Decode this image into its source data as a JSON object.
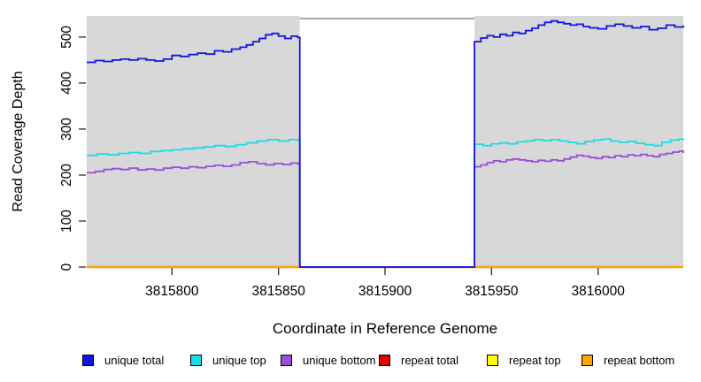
{
  "chart_data": {
    "type": "line",
    "title": "",
    "xlabel": "Coordinate in Reference Genome",
    "ylabel": "Read Coverage Depth",
    "xlim": [
      3815760,
      3816040
    ],
    "ylim": [
      0,
      546
    ],
    "xticks": [
      3815800,
      3815850,
      3815900,
      3815950,
      3816000
    ],
    "yticks": [
      0,
      100,
      200,
      300,
      400,
      500
    ],
    "grid": false,
    "legend_position": "bottom",
    "plot_background": "#d8d8d8",
    "page_background": "#ffffff",
    "tick_color": "#2b2b2b",
    "masked_region": {
      "x_start": 3815860,
      "x_end": 3815942,
      "fill": "#ffffff",
      "top_border_color": "#8d8d8d"
    },
    "draw_order": [
      "repeat total",
      "repeat top",
      "repeat bottom",
      "unique top",
      "unique bottom",
      "unique total"
    ],
    "series": [
      {
        "name": "unique total",
        "color": "#1414e0",
        "points": [
          [
            3815760,
            445
          ],
          [
            3815764,
            449
          ],
          [
            3815768,
            447
          ],
          [
            3815772,
            450
          ],
          [
            3815776,
            452
          ],
          [
            3815780,
            450
          ],
          [
            3815784,
            453
          ],
          [
            3815788,
            450
          ],
          [
            3815792,
            448
          ],
          [
            3815796,
            452
          ],
          [
            3815800,
            460
          ],
          [
            3815804,
            458
          ],
          [
            3815808,
            462
          ],
          [
            3815812,
            465
          ],
          [
            3815816,
            463
          ],
          [
            3815820,
            470
          ],
          [
            3815824,
            468
          ],
          [
            3815828,
            474
          ],
          [
            3815832,
            478
          ],
          [
            3815835,
            483
          ],
          [
            3815838,
            490
          ],
          [
            3815841,
            497
          ],
          [
            3815844,
            505
          ],
          [
            3815847,
            508
          ],
          [
            3815850,
            502
          ],
          [
            3815853,
            497
          ],
          [
            3815856,
            502
          ],
          [
            3815859,
            499
          ],
          [
            3815860,
            0
          ],
          [
            3815941,
            0
          ],
          [
            3815942,
            490
          ],
          [
            3815945,
            498
          ],
          [
            3815948,
            503
          ],
          [
            3815951,
            500
          ],
          [
            3815954,
            506
          ],
          [
            3815957,
            503
          ],
          [
            3815960,
            510
          ],
          [
            3815963,
            508
          ],
          [
            3815966,
            514
          ],
          [
            3815969,
            519
          ],
          [
            3815972,
            526
          ],
          [
            3815975,
            532
          ],
          [
            3815978,
            535
          ],
          [
            3815981,
            532
          ],
          [
            3815984,
            529
          ],
          [
            3815987,
            526
          ],
          [
            3815990,
            528
          ],
          [
            3815993,
            523
          ],
          [
            3815996,
            520
          ],
          [
            3816000,
            518
          ],
          [
            3816004,
            524
          ],
          [
            3816008,
            528
          ],
          [
            3816012,
            524
          ],
          [
            3816016,
            520
          ],
          [
            3816020,
            523
          ],
          [
            3816024,
            516
          ],
          [
            3816028,
            519
          ],
          [
            3816032,
            526
          ],
          [
            3816036,
            522
          ],
          [
            3816040,
            525
          ]
        ]
      },
      {
        "name": "unique top",
        "color": "#19dce6",
        "points": [
          [
            3815760,
            243
          ],
          [
            3815765,
            246
          ],
          [
            3815770,
            244
          ],
          [
            3815775,
            247
          ],
          [
            3815780,
            249
          ],
          [
            3815785,
            247
          ],
          [
            3815790,
            251
          ],
          [
            3815795,
            253
          ],
          [
            3815800,
            255
          ],
          [
            3815805,
            257
          ],
          [
            3815810,
            259
          ],
          [
            3815815,
            261
          ],
          [
            3815820,
            264
          ],
          [
            3815825,
            262
          ],
          [
            3815830,
            266
          ],
          [
            3815835,
            270
          ],
          [
            3815840,
            274
          ],
          [
            3815845,
            277
          ],
          [
            3815850,
            274
          ],
          [
            3815855,
            277
          ],
          [
            3815859,
            276
          ],
          [
            3815860,
            0
          ],
          [
            3815941,
            0
          ],
          [
            3815942,
            267
          ],
          [
            3815946,
            264
          ],
          [
            3815950,
            268
          ],
          [
            3815954,
            270
          ],
          [
            3815958,
            268
          ],
          [
            3815962,
            272
          ],
          [
            3815966,
            274
          ],
          [
            3815970,
            277
          ],
          [
            3815974,
            275
          ],
          [
            3815978,
            277
          ],
          [
            3815982,
            274
          ],
          [
            3815986,
            271
          ],
          [
            3815990,
            268
          ],
          [
            3815994,
            273
          ],
          [
            3815998,
            276
          ],
          [
            3816002,
            278
          ],
          [
            3816006,
            274
          ],
          [
            3816010,
            271
          ],
          [
            3816014,
            273
          ],
          [
            3816018,
            269
          ],
          [
            3816022,
            266
          ],
          [
            3816026,
            264
          ],
          [
            3816030,
            271
          ],
          [
            3816034,
            276
          ],
          [
            3816038,
            278
          ],
          [
            3816040,
            276
          ]
        ]
      },
      {
        "name": "unique bottom",
        "color": "#9b4ddb",
        "points": [
          [
            3815760,
            205
          ],
          [
            3815764,
            208
          ],
          [
            3815768,
            212
          ],
          [
            3815772,
            214
          ],
          [
            3815776,
            212
          ],
          [
            3815780,
            215
          ],
          [
            3815784,
            211
          ],
          [
            3815788,
            213
          ],
          [
            3815792,
            211
          ],
          [
            3815796,
            215
          ],
          [
            3815800,
            217
          ],
          [
            3815804,
            215
          ],
          [
            3815808,
            218
          ],
          [
            3815812,
            216
          ],
          [
            3815816,
            219
          ],
          [
            3815820,
            221
          ],
          [
            3815824,
            219
          ],
          [
            3815828,
            222
          ],
          [
            3815832,
            227
          ],
          [
            3815836,
            229
          ],
          [
            3815840,
            225
          ],
          [
            3815844,
            222
          ],
          [
            3815848,
            225
          ],
          [
            3815852,
            223
          ],
          [
            3815856,
            226
          ],
          [
            3815859,
            224
          ],
          [
            3815860,
            0
          ],
          [
            3815941,
            0
          ],
          [
            3815942,
            218
          ],
          [
            3815945,
            222
          ],
          [
            3815948,
            227
          ],
          [
            3815951,
            231
          ],
          [
            3815954,
            229
          ],
          [
            3815957,
            233
          ],
          [
            3815960,
            235
          ],
          [
            3815963,
            233
          ],
          [
            3815966,
            231
          ],
          [
            3815969,
            229
          ],
          [
            3815972,
            232
          ],
          [
            3815975,
            230
          ],
          [
            3815978,
            233
          ],
          [
            3815981,
            231
          ],
          [
            3815984,
            235
          ],
          [
            3815987,
            239
          ],
          [
            3815990,
            243
          ],
          [
            3815993,
            241
          ],
          [
            3815996,
            238
          ],
          [
            3815999,
            236
          ],
          [
            3816002,
            240
          ],
          [
            3816005,
            238
          ],
          [
            3816008,
            242
          ],
          [
            3816011,
            240
          ],
          [
            3816014,
            244
          ],
          [
            3816017,
            242
          ],
          [
            3816020,
            245
          ],
          [
            3816023,
            242
          ],
          [
            3816026,
            240
          ],
          [
            3816029,
            245
          ],
          [
            3816032,
            247
          ],
          [
            3816035,
            250
          ],
          [
            3816038,
            252
          ],
          [
            3816040,
            248
          ]
        ]
      },
      {
        "name": "repeat total",
        "color": "#e60000",
        "points": [
          [
            3815760,
            0
          ],
          [
            3816040,
            0
          ]
        ]
      },
      {
        "name": "repeat top",
        "color": "#ffff00",
        "points": [
          [
            3815760,
            0
          ],
          [
            3816040,
            0
          ]
        ]
      },
      {
        "name": "repeat bottom",
        "color": "#ffa500",
        "points": [
          [
            3815760,
            0
          ],
          [
            3816040,
            0
          ]
        ]
      }
    ]
  }
}
